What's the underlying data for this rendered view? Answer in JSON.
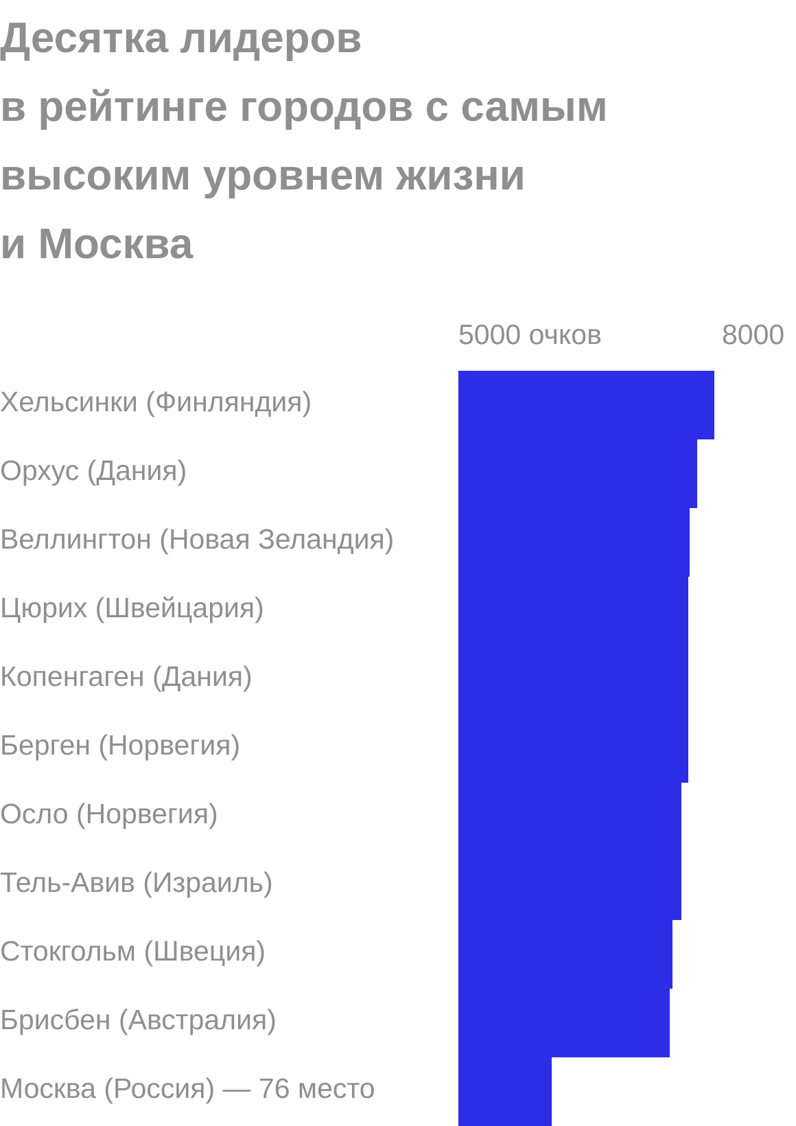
{
  "chart_data": {
    "type": "bar",
    "orientation": "horizontal",
    "title": "Десятка лидеров\nв рейтинге городов с самым\nвысоким уровнем жизни\nи Москва",
    "xlabel": "",
    "ylabel": "",
    "tick_labels": [
      "5000 очков",
      "8000"
    ],
    "xlim": [
      5000,
      8000
    ],
    "grid": false,
    "bar_color": "#2d2de6",
    "text_color": "#8f8f8f",
    "categories": [
      "Хельсинки (Финляндия)",
      "Орхус (Дания)",
      "Веллингтон (Новая Зеландия)",
      "Цюрих (Швейцария)",
      "Копенгаген (Дания)",
      "Берген (Норвегия)",
      "Осло (Норвегия)",
      "Тель-Авив (Израиль)",
      "Стокгольм (Швеция)",
      "Брисбен (Австралия)",
      "Москва (Россия) — 76 место"
    ],
    "values": [
      7858,
      7660,
      7580,
      7560,
      7560,
      7560,
      7490,
      7490,
      7390,
      7360,
      6040
    ]
  }
}
